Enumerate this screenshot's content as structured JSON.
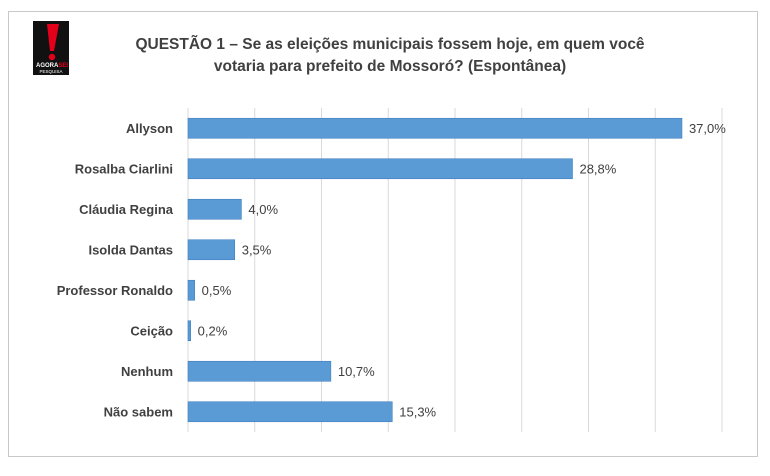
{
  "logo": {
    "brand": "AGORA",
    "brand_accent": "SEI",
    "subtitle": "PESQUISA"
  },
  "header": {
    "title_line1": "QUESTÃO 1 – Se as eleições municipais fossem hoje, em quem você",
    "title_line2": "votaria para prefeito de Mossoró? (Espontânea)"
  },
  "colors": {
    "bar": "#5b9bd5",
    "bar_edge": "#3f7fc0",
    "grid": "#d9d9d9",
    "logo_red": "#e3001b"
  },
  "chart_data": {
    "type": "bar",
    "orientation": "horizontal",
    "categories": [
      "Allyson",
      "Rosalba Ciarlini",
      "Cláudia Regina",
      "Isolda Dantas",
      "Professor Ronaldo",
      "Ceição",
      "Nenhum",
      "Não sabem"
    ],
    "values": [
      37.0,
      28.8,
      4.0,
      3.5,
      0.5,
      0.2,
      10.7,
      15.3
    ],
    "value_labels": [
      "37,0%",
      "28,8%",
      "4,0%",
      "3,5%",
      "0,5%",
      "0,2%",
      "10,7%",
      "15,3%"
    ],
    "xlim": [
      0,
      40
    ],
    "grid": true
  }
}
